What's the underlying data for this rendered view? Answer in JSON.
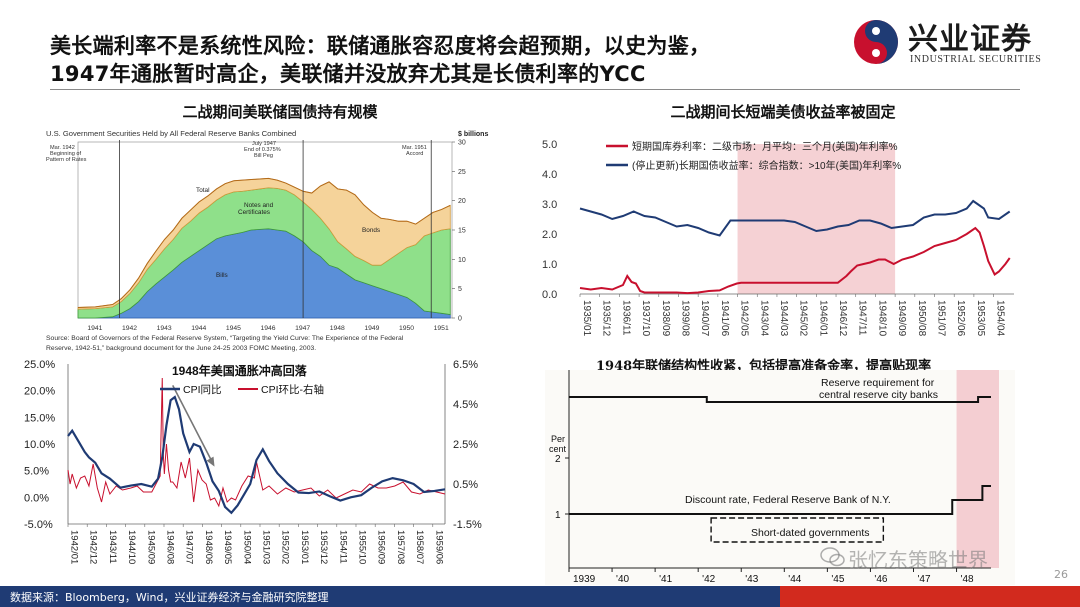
{
  "slide": {
    "title_line1": "美长端利率不是系统性风险：联储通胀容忍度将会超预期，以史为鉴，",
    "title_line2": "1947年通胀暂时高企，美联储并没放弃尤其是长债利率的YCC",
    "page_number": "26",
    "footer_source": "数据来源：Bloomberg，Wind，兴业证券经济与金融研究院整理",
    "watermark": "张忆东策略世界",
    "colors": {
      "navy": "#1f3b74",
      "red": "#d22a1e",
      "shade": "#f3c9cd"
    }
  },
  "logo": {
    "name": "兴业证券",
    "sub": "INDUSTRIAL SECURITIES",
    "icon": "circle-swirl-logo-icon"
  },
  "panels": {
    "p1": {
      "title": "二战期间美联储国债持有规模",
      "chart_title": "U.S. Government Securities Held by All Federal Reserve Banks Combined",
      "unit": "$ billions",
      "annotations": [
        {
          "text": [
            "Mar. 1942",
            "Beginning of",
            "Pattern of Rates"
          ]
        },
        {
          "text": [
            "July 1947",
            "End of 0.375%",
            "Bill Peg"
          ]
        },
        {
          "text": [
            "Mar. 1951",
            "Accord"
          ]
        }
      ],
      "area_labels": {
        "total": "Total",
        "notes": "Notes and",
        "notes2": "Certificates",
        "bonds": "Bonds",
        "bills": "Bills"
      },
      "source": [
        "Source: Board of Governors of the Federal Reserve System, “Targeting the Yield Curve: The Experience of the Federal",
        "Reserve, 1942-51,” background document for the June 24-25 2003 FOMC Meeting, 2003."
      ]
    },
    "p2": {
      "title": "二战期间长短端美债收益率被固定",
      "legend": [
        "短期国库券利率：二级市场：月平均：三个月(美国)年利率%",
        "(停止更新)长期国债收益率：综合指数：>10年(美国)年利率%"
      ]
    },
    "p3": {
      "chart_title": "1948年美国通胀冲高回落",
      "legend": [
        "CPI同比",
        "CPI环比-右轴"
      ]
    },
    "p4": {
      "title": "1948年联储结构性收紧，包括提高准备金率，提高贴现率",
      "labels": {
        "reserve1": "Reserve requirement for",
        "reserve2": "central reserve city banks",
        "percent1": "Per",
        "percent2": "cent",
        "discount": "Discount rate, Federal Reserve Bank of N.Y.",
        "short": "Short-dated governments"
      }
    }
  },
  "chart_data": [
    {
      "type": "area",
      "title": "U.S. Government Securities Held by All Federal Reserve Banks Combined",
      "ylabel": "$ billions",
      "x_ticks": [
        "1941",
        "1942",
        "1943",
        "1944",
        "1945",
        "1946",
        "1947",
        "1948",
        "1949",
        "1950",
        "1951"
      ],
      "ylim": [
        0,
        30
      ],
      "y_ticks": [
        0,
        5,
        10,
        15,
        20,
        25,
        30
      ],
      "x": [
        1941.0,
        1941.5,
        1942.0,
        1942.25,
        1942.5,
        1942.75,
        1943.0,
        1943.25,
        1943.5,
        1943.75,
        1944.0,
        1944.25,
        1944.5,
        1944.75,
        1945.0,
        1945.25,
        1945.5,
        1945.75,
        1946.0,
        1946.25,
        1946.5,
        1946.75,
        1947.0,
        1947.25,
        1947.5,
        1947.75,
        1948.0,
        1948.25,
        1948.5,
        1948.75,
        1949.0,
        1949.25,
        1949.5,
        1949.75,
        1950.0,
        1950.25,
        1950.5,
        1950.75,
        1951.0,
        1951.25,
        1951.5,
        1951.75
      ],
      "series": [
        {
          "name": "Bills",
          "values": [
            0.0,
            0.0,
            0.2,
            0.8,
            1.6,
            2.8,
            4.5,
            5.8,
            7.0,
            8.2,
            9.5,
            10.5,
            11.5,
            12.5,
            13.5,
            14.0,
            14.3,
            14.6,
            15.0,
            15.1,
            15.2,
            15.0,
            14.8,
            14.0,
            13.0,
            11.5,
            10.5,
            9.0,
            8.5,
            7.5,
            6.5,
            6.0,
            5.5,
            5.0,
            4.5,
            4.0,
            3.5,
            2.5,
            1.2,
            1.0,
            0.8,
            0.6
          ]
        },
        {
          "name": "Notes and Certificates",
          "values": [
            1.5,
            1.6,
            1.7,
            2.0,
            2.6,
            3.2,
            3.8,
            4.2,
            4.8,
            5.2,
            5.8,
            6.0,
            6.4,
            6.4,
            6.6,
            7.0,
            7.2,
            7.0,
            6.8,
            6.9,
            7.0,
            7.1,
            7.0,
            7.0,
            6.8,
            7.0,
            6.5,
            6.2,
            4.5,
            4.3,
            4.0,
            3.8,
            3.5,
            4.0,
            5.5,
            7.0,
            8.5,
            10.0,
            12.8,
            13.5,
            14.2,
            14.6
          ]
        },
        {
          "name": "Bonds",
          "values": [
            0.3,
            0.3,
            0.4,
            0.5,
            0.6,
            0.8,
            1.0,
            1.4,
            1.6,
            1.6,
            1.7,
            1.9,
            1.9,
            1.9,
            1.9,
            1.9,
            1.9,
            1.9,
            1.8,
            1.7,
            1.6,
            1.4,
            1.2,
            1.3,
            1.8,
            2.8,
            5.5,
            8.0,
            9.0,
            10.0,
            10.5,
            9.5,
            9.0,
            8.0,
            6.8,
            5.5,
            4.5,
            3.5,
            3.0,
            3.5,
            3.5,
            4.0
          ]
        }
      ]
    },
    {
      "type": "line",
      "x_ticks": [
        "1935/01",
        "1935/12",
        "1936/11",
        "1937/10",
        "1938/09",
        "1939/08",
        "1940/07",
        "1941/06",
        "1942/05",
        "1943/04",
        "1944/03",
        "1945/02",
        "1946/01",
        "1946/12",
        "1947/11",
        "1948/10",
        "1949/09",
        "1950/08",
        "1951/07",
        "1952/06",
        "1953/05",
        "1954/04"
      ],
      "ylim": [
        0,
        5
      ],
      "y_ticks": [
        0.0,
        1.0,
        2.0,
        3.0,
        4.0,
        5.0
      ],
      "shaded_range": [
        "1942/05",
        "1949/09"
      ],
      "series": [
        {
          "name": "短期国库券利率：二级市场：月平均：三个月(美国)年利率%",
          "color": "#c8102e",
          "x": [
            1935.0,
            1935.5,
            1936.0,
            1936.5,
            1937.0,
            1937.2,
            1937.4,
            1937.6,
            1937.8,
            1938.0,
            1938.5,
            1939.0,
            1939.5,
            1940.0,
            1940.5,
            1941.0,
            1941.5,
            1941.9,
            1942.3,
            1942.5,
            1943.0,
            1944.0,
            1945.0,
            1946.0,
            1947.0,
            1947.4,
            1947.6,
            1947.9,
            1948.2,
            1948.5,
            1948.9,
            1949.2,
            1949.6,
            1950.0,
            1950.5,
            1951.0,
            1951.5,
            1952.0,
            1952.5,
            1953.0,
            1953.4,
            1953.6,
            1953.8,
            1954.0,
            1954.3,
            1954.5,
            1954.8,
            1955.0
          ],
          "values": [
            0.2,
            0.15,
            0.2,
            0.15,
            0.3,
            0.6,
            0.4,
            0.35,
            0.1,
            0.05,
            0.05,
            0.05,
            0.05,
            0.03,
            0.05,
            0.1,
            0.12,
            0.25,
            0.35,
            0.375,
            0.375,
            0.375,
            0.375,
            0.375,
            0.375,
            0.6,
            0.75,
            0.95,
            1.0,
            1.05,
            1.15,
            1.15,
            1.0,
            1.15,
            1.25,
            1.4,
            1.6,
            1.7,
            1.8,
            2.0,
            2.2,
            2.05,
            1.6,
            1.1,
            0.65,
            0.75,
            1.0,
            1.2
          ]
        },
        {
          "name": "(停止更新)长期国债收益率：综合指数：>10年(美国)年利率%",
          "color": "#1f3b74",
          "x": [
            1935.0,
            1935.5,
            1936.0,
            1936.5,
            1937.0,
            1937.5,
            1938.0,
            1938.5,
            1939.0,
            1939.5,
            1940.0,
            1940.5,
            1941.0,
            1941.5,
            1942.0,
            1942.5,
            1943.0,
            1943.5,
            1944.0,
            1944.5,
            1945.0,
            1945.5,
            1946.0,
            1946.5,
            1947.0,
            1947.5,
            1948.0,
            1948.5,
            1949.0,
            1949.5,
            1950.0,
            1950.5,
            1951.0,
            1951.5,
            1952.0,
            1952.5,
            1953.0,
            1953.3,
            1953.5,
            1953.8,
            1954.0,
            1954.5,
            1955.0
          ],
          "values": [
            2.85,
            2.75,
            2.65,
            2.5,
            2.6,
            2.75,
            2.6,
            2.55,
            2.4,
            2.25,
            2.3,
            2.2,
            2.05,
            1.95,
            2.45,
            2.45,
            2.45,
            2.45,
            2.45,
            2.45,
            2.4,
            2.25,
            2.1,
            2.15,
            2.25,
            2.3,
            2.45,
            2.45,
            2.35,
            2.2,
            2.25,
            2.3,
            2.55,
            2.65,
            2.65,
            2.7,
            2.85,
            3.1,
            3.0,
            2.85,
            2.55,
            2.5,
            2.75
          ]
        }
      ]
    },
    {
      "type": "line",
      "title": "1948年美国通胀冲高回落",
      "x_ticks": [
        "1942/01",
        "1942/12",
        "1943/11",
        "1944/10",
        "1945/09",
        "1946/08",
        "1947/07",
        "1948/06",
        "1949/05",
        "1950/04",
        "1951/03",
        "1952/02",
        "1953/01",
        "1953/12",
        "1954/11",
        "1955/10",
        "1956/09",
        "1957/08",
        "1958/07",
        "1959/06"
      ],
      "ylim_left": [
        -5,
        25
      ],
      "y_ticks_left": [
        "-5.0%",
        "0.0%",
        "5.0%",
        "10.0%",
        "15.0%",
        "20.0%",
        "25.0%"
      ],
      "ylim_right": [
        -1.5,
        6.5
      ],
      "y_ticks_right": [
        "-1.5%",
        "0.5%",
        "2.5%",
        "4.5%",
        "6.5%"
      ],
      "series": [
        {
          "name": "CPI同比",
          "axis": "left",
          "color": "#1f3b74",
          "x": [
            1942.0,
            1942.2,
            1942.5,
            1942.8,
            1943.0,
            1943.3,
            1943.6,
            1944.0,
            1944.5,
            1945.0,
            1945.5,
            1946.0,
            1946.3,
            1946.5,
            1946.7,
            1946.9,
            1947.1,
            1947.3,
            1947.5,
            1947.8,
            1948.0,
            1948.3,
            1948.6,
            1948.9,
            1949.2,
            1949.5,
            1949.8,
            1950.1,
            1950.4,
            1950.7,
            1951.0,
            1951.3,
            1951.6,
            1952.0,
            1952.5,
            1953.0,
            1953.5,
            1954.0,
            1954.5,
            1955.0,
            1955.5,
            1956.0,
            1956.5,
            1957.0,
            1957.5,
            1958.0,
            1958.5,
            1959.0,
            1959.5,
            1960.0
          ],
          "values": [
            11.5,
            12.5,
            10.5,
            8.5,
            7.5,
            6.5,
            4.5,
            3.5,
            1.8,
            2.2,
            2.5,
            2.0,
            3.5,
            7.5,
            13.5,
            18.2,
            18.8,
            16.5,
            12.0,
            8.5,
            10.0,
            9.5,
            6.5,
            3.0,
            1.2,
            -1.8,
            -2.9,
            -1.5,
            0.5,
            2.5,
            7.0,
            9.0,
            6.8,
            4.5,
            2.5,
            0.9,
            0.8,
            1.1,
            0.2,
            -0.6,
            0.0,
            0.4,
            1.8,
            3.0,
            3.6,
            3.2,
            2.5,
            1.0,
            1.2,
            1.5
          ]
        },
        {
          "name": "CPI环比-右轴",
          "axis": "right",
          "color": "#c8102e",
          "x": [
            1942.0,
            1942.1,
            1942.2,
            1942.4,
            1942.6,
            1942.8,
            1943.0,
            1943.2,
            1943.4,
            1943.6,
            1943.8,
            1944.0,
            1944.3,
            1944.6,
            1945.0,
            1945.3,
            1945.6,
            1946.0,
            1946.2,
            1946.4,
            1946.5,
            1946.55,
            1946.6,
            1946.7,
            1946.8,
            1946.9,
            1947.0,
            1947.2,
            1947.4,
            1947.6,
            1947.8,
            1948.0,
            1948.2,
            1948.4,
            1948.6,
            1948.8,
            1949.0,
            1949.2,
            1949.4,
            1949.6,
            1949.8,
            1950.0,
            1950.3,
            1950.6,
            1950.9,
            1951.0,
            1951.3,
            1951.6,
            1952.0,
            1952.4,
            1952.8,
            1953.2,
            1953.6,
            1954.0,
            1954.4,
            1954.8,
            1955.2,
            1955.6,
            1956.0,
            1956.4,
            1956.8,
            1957.2,
            1957.6,
            1958.0,
            1958.4,
            1958.8,
            1959.2,
            1959.6,
            1960.0
          ],
          "values": [
            1.2,
            0.5,
            1.0,
            0.3,
            0.8,
            0.9,
            0.4,
            1.5,
            0.3,
            -0.4,
            0.6,
            0.0,
            0.4,
            0.2,
            0.3,
            0.4,
            0.1,
            0.1,
            0.5,
            0.9,
            5.8,
            2.0,
            1.0,
            2.5,
            1.2,
            0.6,
            0.6,
            0.3,
            1.6,
            0.8,
            1.8,
            -0.4,
            1.2,
            0.7,
            0.5,
            -0.3,
            -0.2,
            -0.6,
            0.3,
            -0.4,
            -0.2,
            -0.3,
            0.4,
            0.9,
            0.8,
            1.6,
            0.2,
            0.4,
            0.0,
            0.3,
            0.1,
            0.2,
            0.3,
            -0.1,
            0.2,
            -0.2,
            0.0,
            0.2,
            0.1,
            0.5,
            0.3,
            0.3,
            0.4,
            0.6,
            0.1,
            0.0,
            0.2,
            0.1,
            0.0
          ]
        }
      ]
    },
    {
      "type": "line",
      "title": "1948年联储结构性收紧，包括提高准备金率，提高贴现率",
      "x_ticks": [
        "1939",
        "'40",
        "'41",
        "'42",
        "'43",
        "'44",
        "'45",
        "'46",
        "'47",
        "'48"
      ],
      "y_ticks": [
        "2",
        "1"
      ],
      "ylabel": "Per cent",
      "series": [
        {
          "name": "Reserve requirement for central reserve city banks",
          "x": [
            1939.0,
            1941.8,
            1941.8,
            1942.2,
            1942.2,
            1948.0,
            1948.0,
            1948.5,
            1948.5,
            1948.8
          ],
          "values": [
            26,
            26,
            26,
            26,
            24,
            24,
            24,
            24,
            26,
            26
          ],
          "y_axis": "independent"
        },
        {
          "name": "Discount rate, Federal Reserve Bank of N.Y.",
          "x": [
            1939.0,
            1947.9,
            1947.9,
            1948.6,
            1948.6,
            1948.8
          ],
          "values": [
            1.0,
            1.0,
            1.25,
            1.25,
            1.5,
            1.5
          ]
        },
        {
          "name": "Short-dated governments",
          "x": [
            1942.3,
            1946.3
          ],
          "values": [
            0.5,
            0.5
          ]
        }
      ],
      "shaded_range": [
        "1948.0",
        "1948.8"
      ]
    }
  ]
}
